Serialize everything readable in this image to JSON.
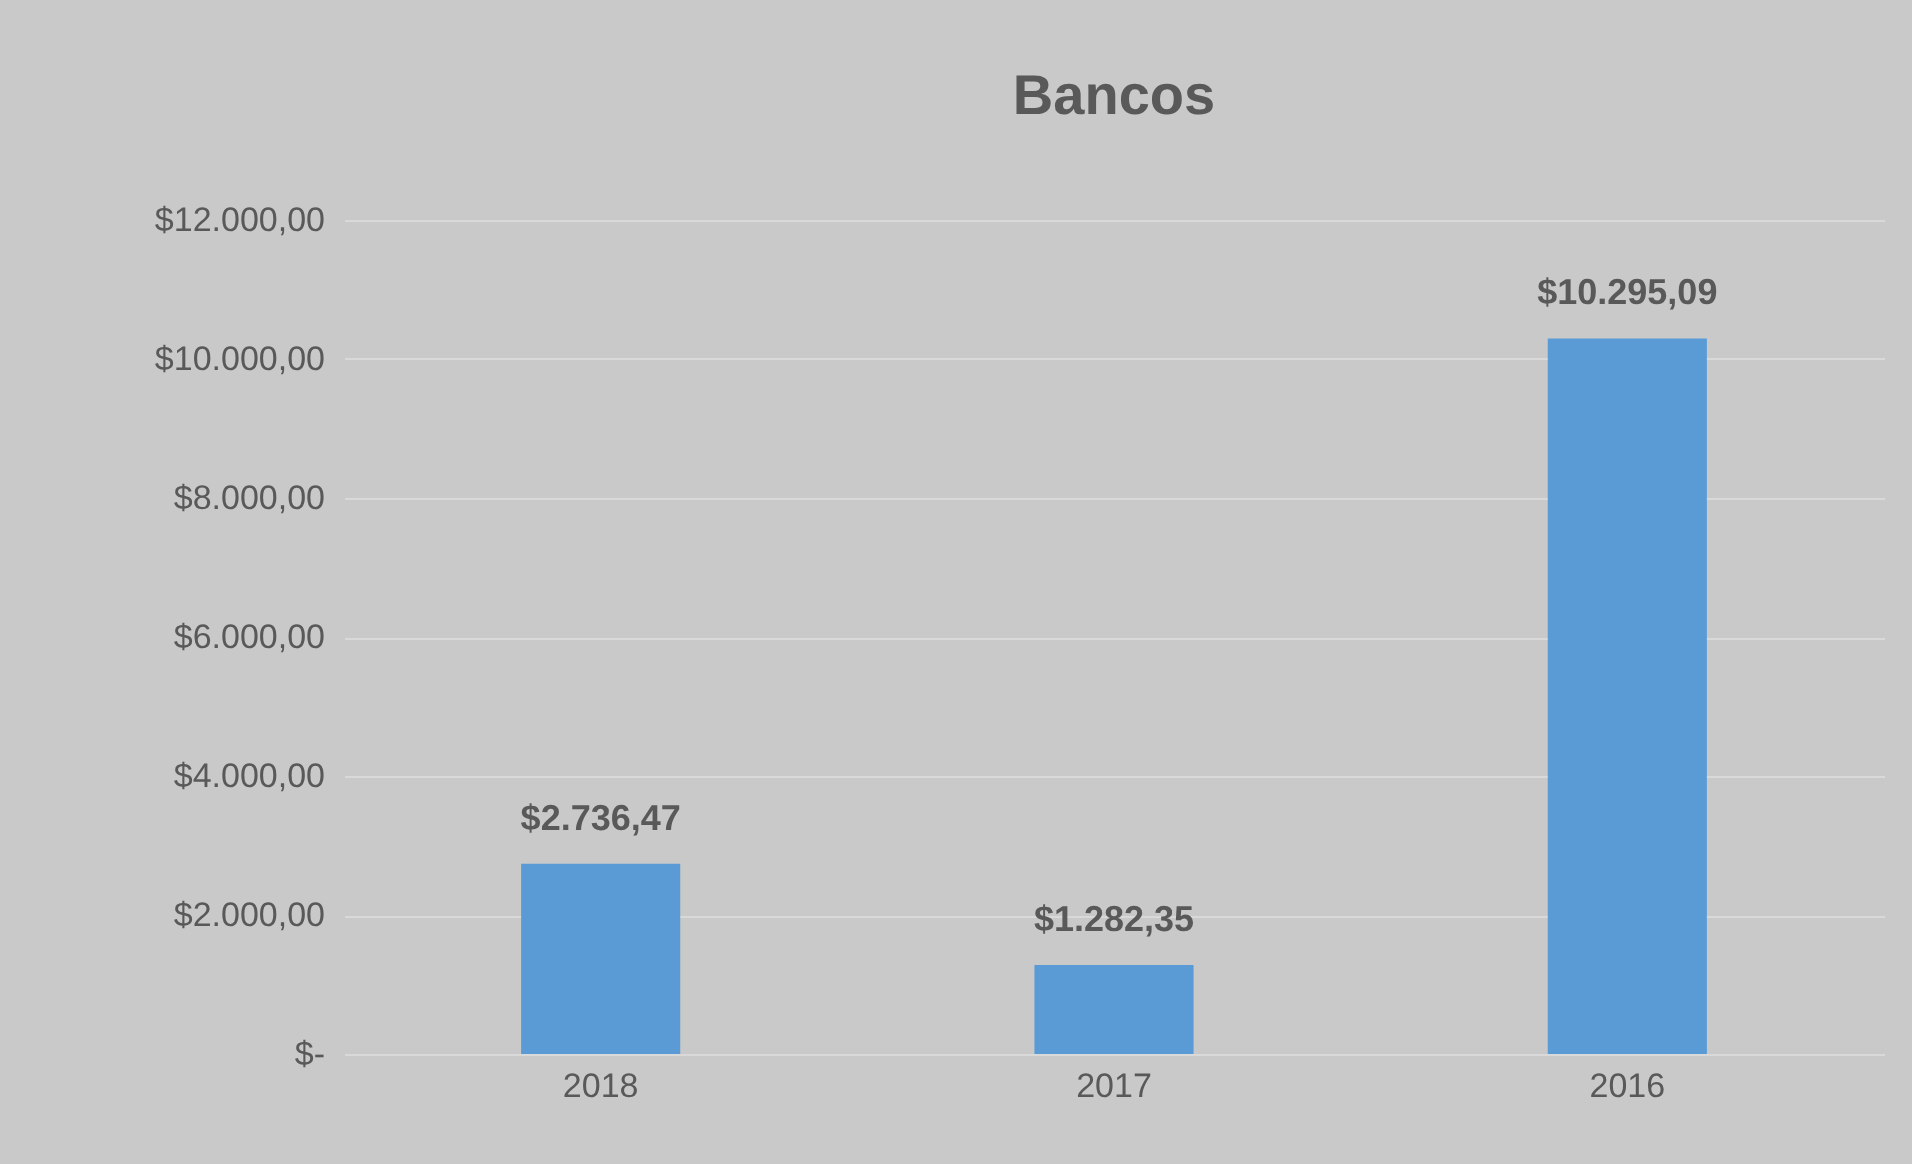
{
  "chart_data": {
    "type": "bar",
    "title": "Bancos",
    "categories": [
      "2018",
      "2017",
      "2016"
    ],
    "values": [
      2736.47,
      1282.35,
      10295.09
    ],
    "value_labels": [
      "$2.736,47",
      "$1.282,35",
      "$10.295,09"
    ],
    "color": "#5b9bd5",
    "ylim": [
      0,
      12000
    ],
    "yticks": [
      {
        "value": 0,
        "label": "$-"
      },
      {
        "value": 2000,
        "label": "$2.000,00"
      },
      {
        "value": 4000,
        "label": "$4.000,00"
      },
      {
        "value": 6000,
        "label": "$6.000,00"
      },
      {
        "value": 8000,
        "label": "$8.000,00"
      },
      {
        "value": 10000,
        "label": "$10.000,00"
      },
      {
        "value": 12000,
        "label": "$12.000,00"
      }
    ],
    "grid": "y"
  }
}
